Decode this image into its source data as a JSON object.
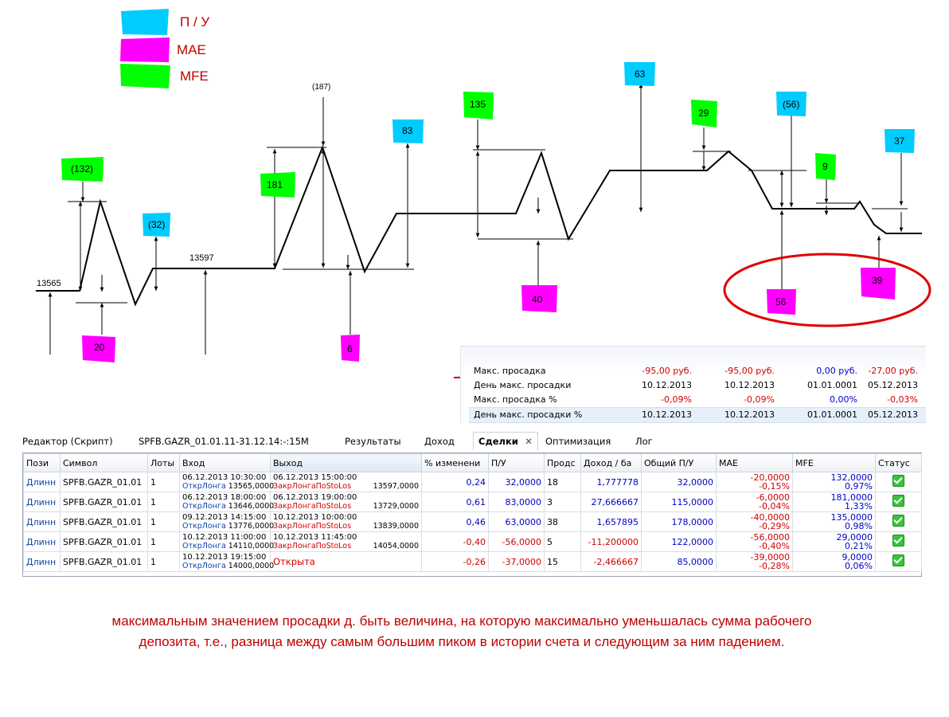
{
  "legend": [
    {
      "label": "П / У",
      "color": "#00ccff"
    },
    {
      "label": "MAE",
      "color": "#ff00ff"
    },
    {
      "label": "MFE",
      "color": "#00ff00"
    }
  ],
  "diagram": {
    "price_labels": [
      "13565",
      "13597"
    ],
    "peak_label": "(187)",
    "tags": [
      {
        "text": "(132)",
        "kind": "MFE"
      },
      {
        "text": "20",
        "kind": "MAE"
      },
      {
        "text": "(32)",
        "kind": "П / У"
      },
      {
        "text": "181",
        "kind": "MFE"
      },
      {
        "text": "6",
        "kind": "MAE"
      },
      {
        "text": "83",
        "kind": "П / У"
      },
      {
        "text": "135",
        "kind": "MFE"
      },
      {
        "text": "40",
        "kind": "MAE"
      },
      {
        "text": "63",
        "kind": "П / У"
      },
      {
        "text": "29",
        "kind": "MFE"
      },
      {
        "text": "(56)",
        "kind": "П / У"
      },
      {
        "text": "56",
        "kind": "MAE"
      },
      {
        "text": "9",
        "kind": "MFE"
      },
      {
        "text": "37",
        "kind": "П / У"
      },
      {
        "text": "39",
        "kind": "MAE"
      }
    ]
  },
  "stats": {
    "rows": [
      {
        "label": "Макс. просадка",
        "values": [
          "-95,00 руб.",
          "-95,00 руб.",
          "0,00 руб.",
          "-27,00 руб."
        ],
        "colors": [
          "red",
          "red",
          "blue",
          "red"
        ]
      },
      {
        "label": "День макс. просадки",
        "values": [
          "10.12.2013",
          "10.12.2013",
          "01.01.0001",
          "05.12.2013"
        ],
        "colors": [
          "blk",
          "blk",
          "blk",
          "blk"
        ]
      },
      {
        "label": "Макс. просадка %",
        "values": [
          "-0,09%",
          "-0,09%",
          "0,00%",
          "-0,03%"
        ],
        "colors": [
          "red",
          "red",
          "blue",
          "red"
        ]
      },
      {
        "label": "День макс. просадки %",
        "values": [
          "10.12.2013",
          "10.12.2013",
          "01.01.0001",
          "05.12.2013"
        ],
        "colors": [
          "blk",
          "blk",
          "blk",
          "blk"
        ]
      }
    ]
  },
  "tabs": [
    {
      "label": "Редактор (Скрипт)",
      "active": false
    },
    {
      "label": "SPFB.GAZR_01.01.11-31.12.14:-:15M",
      "active": false
    },
    {
      "label": "Результаты",
      "active": false
    },
    {
      "label": "Доход",
      "active": false
    },
    {
      "label": "Сделки",
      "active": true
    },
    {
      "label": "Оптимизация",
      "active": false
    },
    {
      "label": "Лог",
      "active": false
    }
  ],
  "table": {
    "headers": [
      "Пози",
      "Символ",
      "Лоты",
      "Вход",
      "Выход",
      "% изменени",
      "П/У",
      "Продс",
      "Доход / ба",
      "Общий П/У",
      "MAE",
      "MFE",
      "Статус"
    ],
    "rows": [
      {
        "pos": "Длинн",
        "symbol": "SPFB.GAZR_01.01",
        "lots": "1",
        "entry_date": "06.12.2013 10:30:00",
        "entry_name": "ОткрЛонга",
        "entry_price": "13565,0000",
        "exit_date": "06.12.2013 15:00:00",
        "exit_name": "ЗакрЛонгаПоStoLos",
        "exit_price": "13597,0000",
        "change": "0,24",
        "pl": "32,0000",
        "bars": "18",
        "per_bar": "1,777778",
        "total": "32,0000",
        "mae": "-20,0000",
        "mae_pct": "-0,15%",
        "mfe": "132,0000",
        "mfe_pct": "0,97%"
      },
      {
        "pos": "Длинн",
        "symbol": "SPFB.GAZR_01.01",
        "lots": "1",
        "entry_date": "06.12.2013 18:00:00",
        "entry_name": "ОткрЛонга",
        "entry_price": "13646,0000",
        "exit_date": "06.12.2013 19:00:00",
        "exit_name": "ЗакрЛонгаПоStoLos",
        "exit_price": "13729,0000",
        "change": "0,61",
        "pl": "83,0000",
        "bars": "3",
        "per_bar": "27,666667",
        "total": "115,0000",
        "mae": "-6,0000",
        "mae_pct": "-0,04%",
        "mfe": "181,0000",
        "mfe_pct": "1,33%"
      },
      {
        "pos": "Длинн",
        "symbol": "SPFB.GAZR_01.01",
        "lots": "1",
        "entry_date": "09.12.2013 14:15:00",
        "entry_name": "ОткрЛонга",
        "entry_price": "13776,0000",
        "exit_date": "10.12.2013 10:00:00",
        "exit_name": "ЗакрЛонгаПоStoLos",
        "exit_price": "13839,0000",
        "change": "0,46",
        "pl": "63,0000",
        "bars": "38",
        "per_bar": "1,657895",
        "total": "178,0000",
        "mae": "-40,0000",
        "mae_pct": "-0,29%",
        "mfe": "135,0000",
        "mfe_pct": "0,98%"
      },
      {
        "pos": "Длинн",
        "symbol": "SPFB.GAZR_01.01",
        "lots": "1",
        "entry_date": "10.12.2013 11:00:00",
        "entry_name": "ОткрЛонга",
        "entry_price": "14110,0000",
        "exit_date": "10.12.2013 11:45:00",
        "exit_name": "ЗакрЛонгаПоStoLos",
        "exit_price": "14054,0000",
        "change": "-0,40",
        "pl": "-56,0000",
        "bars": "5",
        "per_bar": "-11,200000",
        "total": "122,0000",
        "mae": "-56,0000",
        "mae_pct": "-0,40%",
        "mfe": "29,0000",
        "mfe_pct": "0,21%"
      },
      {
        "pos": "Длинн",
        "symbol": "SPFB.GAZR_01.01",
        "lots": "1",
        "entry_date": "10.12.2013 19:15:00",
        "entry_name": "ОткрЛонга",
        "entry_price": "14000,0000",
        "exit_date": "",
        "exit_name": "Открыта",
        "exit_price": "",
        "change": "-0,26",
        "pl": "-37,0000",
        "bars": "15",
        "per_bar": "-2,466667",
        "total": "85,0000",
        "mae": "-39,0000",
        "mae_pct": "-0,28%",
        "mfe": "9,0000",
        "mfe_pct": "0,06%"
      }
    ]
  },
  "caption": {
    "line1": "максимальным значением просадки д. быть  величина, на которую максимально уменьшалась сумма рабочего",
    "line2": "депозита, т.е., разница между самым большим пиком в истории счета  и следующим за ним падением."
  }
}
